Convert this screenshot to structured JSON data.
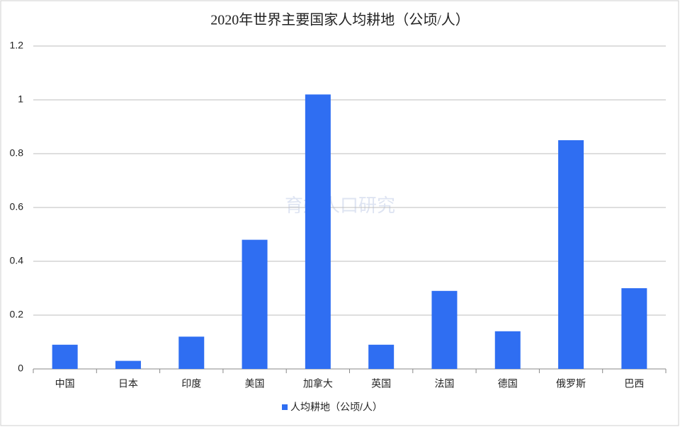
{
  "chart_data": {
    "type": "bar",
    "title": "2020年世界主要国家人均耕地（公顷/人）",
    "watermark": "育娲人口研究",
    "categories": [
      "中国",
      "日本",
      "印度",
      "美国",
      "加拿大",
      "英国",
      "法国",
      "德国",
      "俄罗斯",
      "巴西"
    ],
    "series": [
      {
        "name": "人均耕地（公顷/人）",
        "color": "#2f6ef2",
        "values": [
          0.09,
          0.03,
          0.12,
          0.48,
          1.02,
          0.09,
          0.29,
          0.14,
          0.85,
          0.3
        ]
      }
    ],
    "ylim": [
      0,
      1.2
    ],
    "yticks": [
      0,
      0.2,
      0.4,
      0.6,
      0.8,
      1,
      1.2
    ],
    "grid": true,
    "legend": "bottom"
  }
}
